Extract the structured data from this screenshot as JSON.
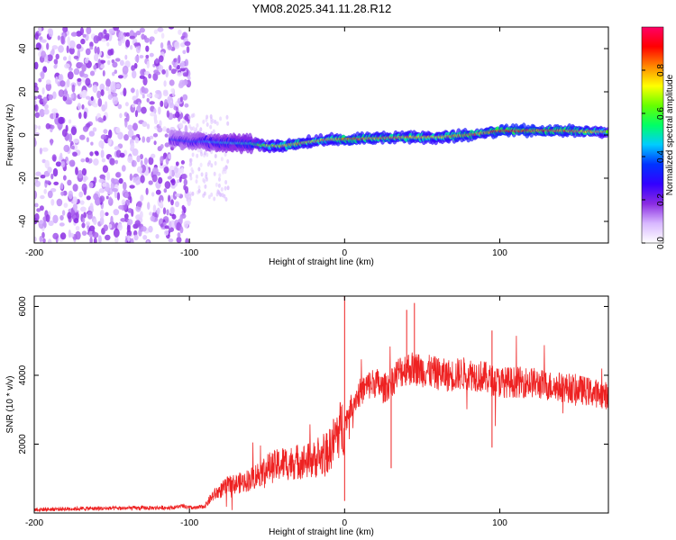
{
  "title": "YM08.2025.341.11.28.R12",
  "chart_data": [
    {
      "type": "heatmap",
      "xlabel": "Height of straight line (km)",
      "ylabel": "Frequency (Hz)",
      "xlim": [
        -200,
        170
      ],
      "ylim": [
        -50,
        50
      ],
      "xticks": [
        -200,
        -100,
        0,
        100
      ],
      "yticks": [
        -40,
        -20,
        0,
        20,
        40
      ],
      "colorbar": {
        "label": "Normalized spectral amplitude",
        "range": [
          0,
          1
        ],
        "ticks": [
          0.0,
          0.2,
          0.4,
          0.6,
          0.8
        ],
        "colors": [
          "#ffffff",
          "#d8b8ff",
          "#8a2be2",
          "#3300ff",
          "#0033ff",
          "#00ccff",
          "#00ff66",
          "#66ff00",
          "#ffff00",
          "#ff8800",
          "#ff0000",
          "#ff0066"
        ]
      },
      "noise_region_km": [
        -200,
        -100
      ],
      "noise_amplitude": 0.15,
      "signal_track": [
        {
          "km": -112,
          "freq": -2,
          "amp": 0.35
        },
        {
          "km": -100,
          "freq": -3,
          "amp": 0.4
        },
        {
          "km": -90,
          "freq": -3,
          "amp": 0.45
        },
        {
          "km": -80,
          "freq": -3.5,
          "amp": 0.5
        },
        {
          "km": -60,
          "freq": -4,
          "amp": 0.55
        },
        {
          "km": -50,
          "freq": -5,
          "amp": 0.75
        },
        {
          "km": -40,
          "freq": -5,
          "amp": 0.8
        },
        {
          "km": -30,
          "freq": -4,
          "amp": 0.85
        },
        {
          "km": -20,
          "freq": -3,
          "amp": 0.8
        },
        {
          "km": -10,
          "freq": -2,
          "amp": 0.8
        },
        {
          "km": 0,
          "freq": -2,
          "amp": 0.9
        },
        {
          "km": 20,
          "freq": -1.5,
          "amp": 0.85
        },
        {
          "km": 40,
          "freq": -1,
          "amp": 0.85
        },
        {
          "km": 60,
          "freq": -1,
          "amp": 0.8
        },
        {
          "km": 80,
          "freq": 0,
          "amp": 0.9
        },
        {
          "km": 90,
          "freq": 1,
          "amp": 0.85
        },
        {
          "km": 100,
          "freq": 2,
          "amp": 0.95
        },
        {
          "km": 120,
          "freq": 2,
          "amp": 0.95
        },
        {
          "km": 140,
          "freq": 2,
          "amp": 0.9
        },
        {
          "km": 160,
          "freq": 1.5,
          "amp": 0.85
        },
        {
          "km": 170,
          "freq": 1.5,
          "amp": 0.7
        }
      ]
    },
    {
      "type": "line",
      "xlabel": "Height of straight line (km)",
      "ylabel": "SNR (10 * v/v)",
      "xlim": [
        -200,
        170
      ],
      "ylim": [
        0,
        6300
      ],
      "xticks": [
        -200,
        -100,
        0,
        100
      ],
      "yticks": [
        2000,
        4000,
        6000
      ],
      "color": "#ee2222",
      "series": [
        {
          "name": "SNR",
          "x": [
            -200,
            -180,
            -160,
            -140,
            -120,
            -110,
            -105,
            -100,
            -95,
            -90,
            -85,
            -80,
            -75,
            -70,
            -65,
            -60,
            -55,
            -50,
            -45,
            -40,
            -35,
            -30,
            -25,
            -20,
            -15,
            -10,
            -5,
            0,
            5,
            10,
            15,
            20,
            25,
            30,
            35,
            40,
            45,
            50,
            55,
            60,
            65,
            70,
            75,
            80,
            85,
            90,
            95,
            100,
            110,
            120,
            130,
            140,
            150,
            160,
            170
          ],
          "y": [
            100,
            120,
            130,
            140,
            150,
            160,
            200,
            150,
            150,
            200,
            500,
            650,
            800,
            850,
            900,
            1000,
            1150,
            1300,
            1350,
            1450,
            1450,
            1500,
            1500,
            1550,
            1600,
            1800,
            2300,
            2600,
            3200,
            3500,
            3700,
            3800,
            3600,
            3800,
            4100,
            4200,
            4200,
            4150,
            4100,
            4050,
            4000,
            4000,
            4050,
            4050,
            4000,
            3950,
            3850,
            3800,
            3800,
            3800,
            3700,
            3650,
            3600,
            3500,
            3400
          ]
        }
      ],
      "spikes": [
        {
          "x": 0,
          "y": 6300
        },
        {
          "x": 0,
          "y": 350
        },
        {
          "x": 45,
          "y": 6100
        },
        {
          "x": 40,
          "y": 5900
        },
        {
          "x": 30,
          "y": 1300
        },
        {
          "x": 95,
          "y": 1900
        },
        {
          "x": 95,
          "y": 5300
        }
      ]
    }
  ]
}
